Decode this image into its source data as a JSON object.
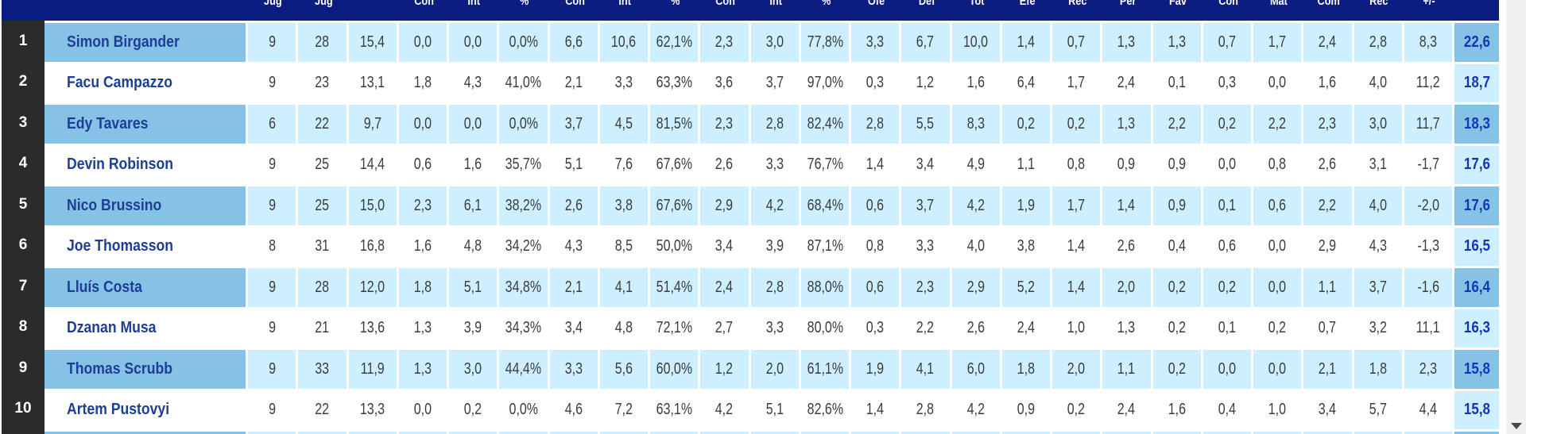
{
  "table": {
    "stat_headers": [
      "Jug",
      "Jug",
      "",
      "Con",
      "Int",
      "%",
      "Con",
      "Int",
      "%",
      "Con",
      "Int",
      "%",
      "Ofe",
      "Def",
      "Tot",
      "Efe",
      "Rec",
      "Per",
      "Fav",
      "Con",
      "Mat",
      "Com",
      "Rec",
      "+/-"
    ],
    "val_header": "",
    "rows": [
      {
        "rank": "1",
        "player": "Simon Birgander",
        "stats": [
          "9",
          "28",
          "15,4",
          "0,0",
          "0,0",
          "0,0%",
          "6,6",
          "10,6",
          "62,1%",
          "2,3",
          "3,0",
          "77,8%",
          "3,3",
          "6,7",
          "10,0",
          "1,4",
          "0,7",
          "1,3",
          "1,3",
          "0,7",
          "1,7",
          "2,4",
          "2,8",
          "8,3"
        ],
        "val": "22,6"
      },
      {
        "rank": "2",
        "player": "Facu Campazzo",
        "stats": [
          "9",
          "23",
          "13,1",
          "1,8",
          "4,3",
          "41,0%",
          "2,1",
          "3,3",
          "63,3%",
          "3,6",
          "3,7",
          "97,0%",
          "0,3",
          "1,2",
          "1,6",
          "6,4",
          "1,7",
          "2,4",
          "0,1",
          "0,3",
          "0,0",
          "1,6",
          "4,0",
          "11,2"
        ],
        "val": "18,7"
      },
      {
        "rank": "3",
        "player": "Edy Tavares",
        "stats": [
          "6",
          "22",
          "9,7",
          "0,0",
          "0,0",
          "0,0%",
          "3,7",
          "4,5",
          "81,5%",
          "2,3",
          "2,8",
          "82,4%",
          "2,8",
          "5,5",
          "8,3",
          "0,2",
          "0,2",
          "1,3",
          "2,2",
          "0,2",
          "2,2",
          "2,3",
          "3,0",
          "11,7"
        ],
        "val": "18,3"
      },
      {
        "rank": "4",
        "player": "Devin Robinson",
        "stats": [
          "9",
          "25",
          "14,4",
          "0,6",
          "1,6",
          "35,7%",
          "5,1",
          "7,6",
          "67,6%",
          "2,6",
          "3,3",
          "76,7%",
          "1,4",
          "3,4",
          "4,9",
          "1,1",
          "0,8",
          "0,9",
          "0,9",
          "0,0",
          "0,8",
          "2,6",
          "3,1",
          "-1,7"
        ],
        "val": "17,6"
      },
      {
        "rank": "5",
        "player": "Nico Brussino",
        "stats": [
          "9",
          "25",
          "15,0",
          "2,3",
          "6,1",
          "38,2%",
          "2,6",
          "3,8",
          "67,6%",
          "2,9",
          "4,2",
          "68,4%",
          "0,6",
          "3,7",
          "4,2",
          "1,9",
          "1,7",
          "1,4",
          "0,9",
          "0,1",
          "0,6",
          "2,2",
          "4,0",
          "-2,0"
        ],
        "val": "17,6"
      },
      {
        "rank": "6",
        "player": "Joe Thomasson",
        "stats": [
          "8",
          "31",
          "16,8",
          "1,6",
          "4,8",
          "34,2%",
          "4,3",
          "8,5",
          "50,0%",
          "3,4",
          "3,9",
          "87,1%",
          "0,8",
          "3,3",
          "4,0",
          "3,8",
          "1,4",
          "2,6",
          "0,4",
          "0,6",
          "0,0",
          "2,9",
          "4,3",
          "-1,3"
        ],
        "val": "16,5"
      },
      {
        "rank": "7",
        "player": "Lluís Costa",
        "stats": [
          "9",
          "28",
          "12,0",
          "1,8",
          "5,1",
          "34,8%",
          "2,1",
          "4,1",
          "51,4%",
          "2,4",
          "2,8",
          "88,0%",
          "0,6",
          "2,3",
          "2,9",
          "5,2",
          "1,4",
          "2,0",
          "0,2",
          "0,2",
          "0,0",
          "1,1",
          "3,7",
          "-1,6"
        ],
        "val": "16,4"
      },
      {
        "rank": "8",
        "player": "Dzanan Musa",
        "stats": [
          "9",
          "21",
          "13,6",
          "1,3",
          "3,9",
          "34,3%",
          "3,4",
          "4,8",
          "72,1%",
          "2,7",
          "3,3",
          "80,0%",
          "0,3",
          "2,2",
          "2,6",
          "2,4",
          "1,0",
          "1,3",
          "0,2",
          "0,1",
          "0,2",
          "0,7",
          "3,2",
          "11,1"
        ],
        "val": "16,3"
      },
      {
        "rank": "9",
        "player": "Thomas Scrubb",
        "stats": [
          "9",
          "33",
          "11,9",
          "1,3",
          "3,0",
          "44,4%",
          "3,3",
          "5,6",
          "60,0%",
          "1,2",
          "2,0",
          "61,1%",
          "1,9",
          "4,1",
          "6,0",
          "1,8",
          "2,0",
          "1,1",
          "0,2",
          "0,0",
          "0,0",
          "2,1",
          "1,8",
          "2,3"
        ],
        "val": "15,8"
      },
      {
        "rank": "10",
        "player": "Artem Pustovyi",
        "stats": [
          "9",
          "22",
          "13,3",
          "0,0",
          "0,2",
          "0,0%",
          "4,6",
          "7,2",
          "63,1%",
          "4,2",
          "5,1",
          "82,6%",
          "1,4",
          "2,8",
          "4,2",
          "0,9",
          "0,2",
          "2,4",
          "1,6",
          "0,4",
          "1,0",
          "3,4",
          "5,7",
          "4,4"
        ],
        "val": "15,8"
      }
    ]
  },
  "colors": {
    "header_bg": "#0c1d81",
    "odd_row_bg": "#cdefff",
    "odd_accent_bg": "#86c2e5",
    "rank_col_bg": "#2b2b2b",
    "player_name_color": "#1d3e96",
    "val_color": "#1634bb"
  },
  "scrollbar": {
    "down_arrow": "down"
  }
}
